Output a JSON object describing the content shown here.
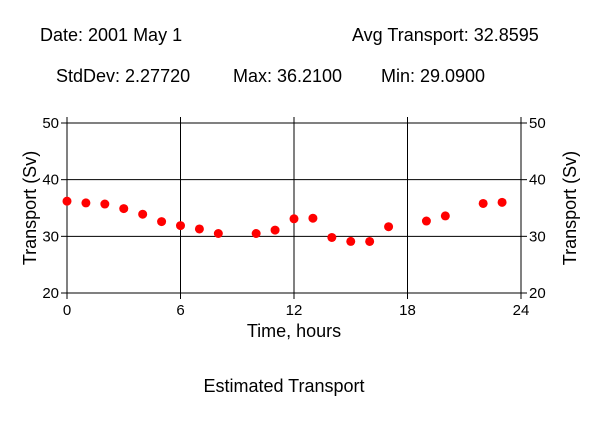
{
  "header": {
    "date": "Date: 2001 May 1",
    "avg": "Avg Transport: 32.8595",
    "stddev": "StdDev: 2.27720",
    "max": "Max: 36.2100",
    "min": "Min: 29.0900"
  },
  "caption": "Estimated Transport",
  "colors": {
    "points": "#ff0000",
    "axes": "#000000",
    "grid": "#000000"
  },
  "chart_data": {
    "type": "scatter",
    "title": "Estimated Transport",
    "xlabel": "Time, hours",
    "ylabel": "Transport (Sv)",
    "ylabel_right": "Transport (Sv)",
    "xlim": [
      0,
      24
    ],
    "ylim": [
      20,
      50
    ],
    "xticks": [
      0,
      6,
      12,
      18,
      24
    ],
    "yticks": [
      20,
      30,
      40,
      50
    ],
    "grid": true,
    "series": [
      {
        "x": [
          0,
          1,
          2,
          3,
          4,
          5,
          6,
          7,
          8,
          10,
          11,
          12,
          13,
          14,
          15,
          16,
          17,
          19,
          20,
          22,
          23
        ],
        "y": [
          36.21,
          35.9,
          35.7,
          34.9,
          33.9,
          32.6,
          31.9,
          31.3,
          30.5,
          30.5,
          31.1,
          33.1,
          33.2,
          29.8,
          29.1,
          29.09,
          31.7,
          32.7,
          33.6,
          35.8,
          36.0
        ]
      }
    ]
  }
}
